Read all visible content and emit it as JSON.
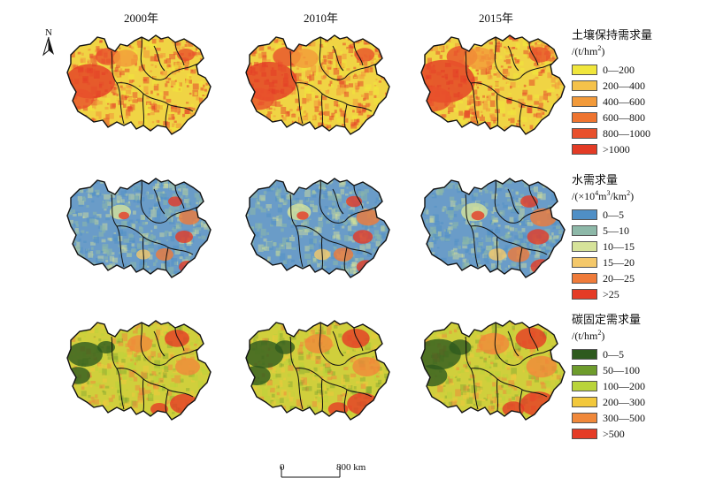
{
  "years": [
    "2000年",
    "2010年",
    "2015年"
  ],
  "north_label": "N",
  "panels": [
    {
      "id": "soil",
      "title": "土壤保持需求量",
      "unit_parts": [
        "/(t/hm",
        "2",
        ")"
      ],
      "classes": [
        {
          "label": "0—200",
          "color": "#f0e63c"
        },
        {
          "label": "200—400",
          "color": "#f5c24a"
        },
        {
          "label": "400—600",
          "color": "#f29a3a"
        },
        {
          "label": "600—800",
          "color": "#ee7430"
        },
        {
          "label": "800—1000",
          "color": "#e8502c"
        },
        {
          "label": ">1000",
          "color": "#e33b25"
        }
      ]
    },
    {
      "id": "water",
      "title": "水需求量",
      "unit_parts": [
        "/(×10",
        "4",
        "m",
        "3",
        "/km",
        "2",
        ")"
      ],
      "classes": [
        {
          "label": "0—5",
          "color": "#4f8fc6"
        },
        {
          "label": "5—10",
          "color": "#8db8a8"
        },
        {
          "label": "10—15",
          "color": "#d6e39a"
        },
        {
          "label": "15—20",
          "color": "#f4c86a"
        },
        {
          "label": "20—25",
          "color": "#ef7b3a"
        },
        {
          "label": ">25",
          "color": "#e53b26"
        }
      ]
    },
    {
      "id": "carbon",
      "title": "碳固定需求量",
      "unit_parts": [
        "/(t/hm",
        "2",
        ")"
      ],
      "classes": [
        {
          "label": "0—5",
          "color": "#2e5a1e"
        },
        {
          "label": "50—100",
          "color": "#6e9c2c"
        },
        {
          "label": "100—200",
          "color": "#b9d43a"
        },
        {
          "label": "200—300",
          "color": "#f2c83c"
        },
        {
          "label": "300—500",
          "color": "#f0883a"
        },
        {
          "label": ">500",
          "color": "#e53b26"
        }
      ]
    }
  ],
  "scale_bar": {
    "start": "0",
    "end": "800 km"
  }
}
